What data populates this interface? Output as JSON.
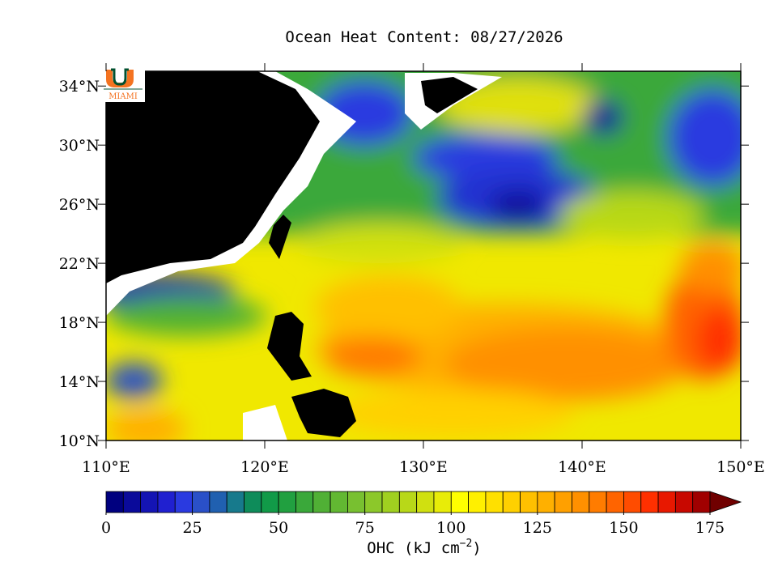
{
  "title": "Ocean Heat Content: 08/27/2026",
  "logo": {
    "text": "MIAMI"
  },
  "map": {
    "lonlim": [
      110,
      150
    ],
    "latlim": [
      10,
      35
    ],
    "lat_ticks": [
      {
        "value": 10,
        "label": "10°N"
      },
      {
        "value": 14,
        "label": "14°N"
      },
      {
        "value": 18,
        "label": "18°N"
      },
      {
        "value": 22,
        "label": "22°N"
      },
      {
        "value": 26,
        "label": "26°N"
      },
      {
        "value": 30,
        "label": "30°N"
      },
      {
        "value": 34,
        "label": "34°N"
      }
    ],
    "lon_ticks": [
      {
        "value": 110,
        "label": "110°E"
      },
      {
        "value": 120,
        "label": "120°E"
      },
      {
        "value": 130,
        "label": "130°E"
      },
      {
        "value": 140,
        "label": "140°E"
      },
      {
        "value": 150,
        "label": "150°E"
      }
    ]
  },
  "colorbar": {
    "range": [
      0,
      175
    ],
    "ticks": [
      0,
      25,
      50,
      75,
      100,
      125,
      150,
      175
    ],
    "label": "OHC (kJ cm",
    "label_exponent": "−2",
    "label_close": ")",
    "colors": [
      "#00007f",
      "#0a0a9a",
      "#1414b4",
      "#2020d0",
      "#2a3ae0",
      "#2a50c8",
      "#2060b0",
      "#177a8c",
      "#0e8c5a",
      "#119a48",
      "#21a040",
      "#3aa83a",
      "#50b035",
      "#62b832",
      "#78c030",
      "#8cc82a",
      "#a0d020",
      "#b8d818",
      "#d0e010",
      "#e8ec08",
      "#ffff00",
      "#fff000",
      "#ffe000",
      "#ffd000",
      "#ffc000",
      "#ffb000",
      "#ffa000",
      "#ff9000",
      "#ff7c00",
      "#ff6400",
      "#ff4c00",
      "#ff3000",
      "#e81800",
      "#c80800",
      "#a00000"
    ],
    "over_color": "#700000"
  }
}
